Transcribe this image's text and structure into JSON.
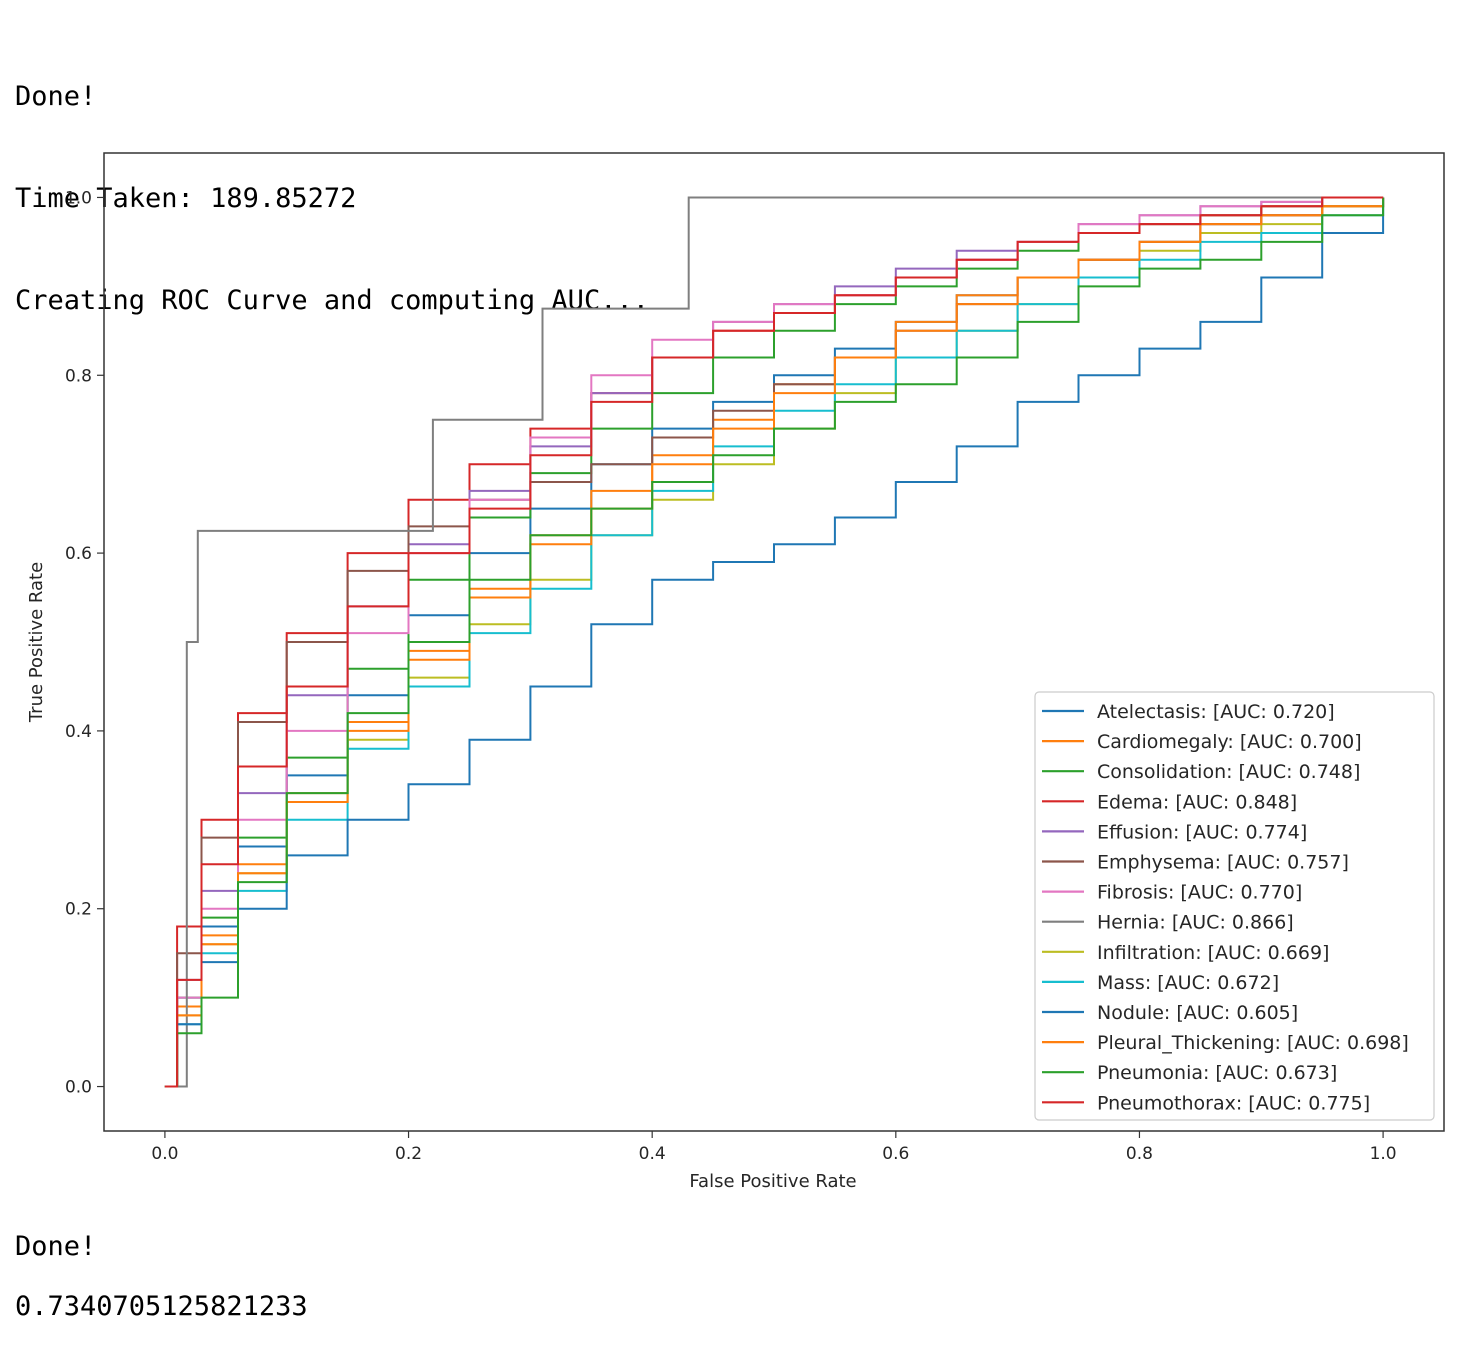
{
  "output": {
    "lines_top": [
      "Done!",
      "Time Taken: 189.85272",
      "Creating ROC Curve and computing AUC..."
    ],
    "done": "Done!",
    "value": "0.7340705125821233"
  },
  "chart_data": {
    "type": "line",
    "title": "",
    "xlabel": "False Positive Rate",
    "ylabel": "True Positive Rate",
    "xlim": [
      -0.05,
      1.05
    ],
    "ylim": [
      -0.05,
      1.05
    ],
    "xticks": [
      "0.0",
      "0.2",
      "0.4",
      "0.6",
      "0.8",
      "1.0"
    ],
    "yticks": [
      "0.0",
      "0.2",
      "0.4",
      "0.6",
      "0.8",
      "1.0"
    ],
    "legend_position": "lower-right",
    "grid": false,
    "series": [
      {
        "name": "Atelectasis: [AUC: 0.720]",
        "color": "#1f77b4",
        "x": [
          0,
          0.01,
          0.03,
          0.06,
          0.1,
          0.15,
          0.2,
          0.25,
          0.3,
          0.35,
          0.4,
          0.45,
          0.5,
          0.55,
          0.6,
          0.65,
          0.7,
          0.75,
          0.8,
          0.85,
          0.9,
          0.95,
          1.0
        ],
        "y": [
          0,
          0.1,
          0.18,
          0.27,
          0.35,
          0.44,
          0.53,
          0.6,
          0.65,
          0.7,
          0.74,
          0.77,
          0.8,
          0.83,
          0.86,
          0.89,
          0.91,
          0.93,
          0.95,
          0.97,
          0.98,
          0.99,
          1.0
        ]
      },
      {
        "name": "Cardiomegaly: [AUC: 0.700]",
        "color": "#ff7f0e",
        "x": [
          0,
          0.01,
          0.03,
          0.06,
          0.1,
          0.15,
          0.2,
          0.25,
          0.3,
          0.35,
          0.4,
          0.45,
          0.5,
          0.55,
          0.6,
          0.65,
          0.7,
          0.75,
          0.8,
          0.85,
          0.9,
          0.95,
          1.0
        ],
        "y": [
          0,
          0.09,
          0.17,
          0.25,
          0.33,
          0.41,
          0.49,
          0.56,
          0.62,
          0.67,
          0.71,
          0.75,
          0.79,
          0.82,
          0.86,
          0.89,
          0.91,
          0.93,
          0.95,
          0.97,
          0.98,
          0.99,
          1.0
        ]
      },
      {
        "name": "Consolidation: [AUC: 0.748]",
        "color": "#2ca02c",
        "x": [
          0,
          0.01,
          0.03,
          0.06,
          0.1,
          0.15,
          0.2,
          0.25,
          0.3,
          0.35,
          0.4,
          0.45,
          0.5,
          0.55,
          0.6,
          0.65,
          0.7,
          0.75,
          0.8,
          0.85,
          0.9,
          0.95,
          1.0
        ],
        "y": [
          0,
          0.1,
          0.19,
          0.28,
          0.37,
          0.47,
          0.57,
          0.64,
          0.69,
          0.74,
          0.78,
          0.82,
          0.85,
          0.88,
          0.9,
          0.92,
          0.94,
          0.96,
          0.97,
          0.98,
          0.99,
          1.0,
          1.0
        ]
      },
      {
        "name": "Edema: [AUC: 0.848]",
        "color": "#d62728",
        "x": [
          0,
          0.01,
          0.03,
          0.06,
          0.1,
          0.15,
          0.2,
          0.25,
          0.3,
          0.35,
          0.4,
          0.45,
          0.5,
          0.55,
          0.6,
          0.65,
          0.7,
          0.75,
          0.8,
          0.85,
          0.9,
          0.95,
          1.0
        ],
        "y": [
          0,
          0.18,
          0.3,
          0.42,
          0.51,
          0.6,
          0.66,
          0.7,
          0.74,
          0.78,
          0.82,
          0.85,
          0.87,
          0.89,
          0.91,
          0.93,
          0.95,
          0.96,
          0.97,
          0.98,
          0.99,
          1.0,
          1.0
        ]
      },
      {
        "name": "Effusion: [AUC: 0.774]",
        "color": "#9467bd",
        "x": [
          0,
          0.01,
          0.03,
          0.06,
          0.1,
          0.15,
          0.2,
          0.25,
          0.3,
          0.35,
          0.4,
          0.45,
          0.5,
          0.55,
          0.6,
          0.65,
          0.7,
          0.75,
          0.8,
          0.85,
          0.9,
          0.95,
          1.0
        ],
        "y": [
          0,
          0.12,
          0.22,
          0.33,
          0.44,
          0.54,
          0.61,
          0.67,
          0.72,
          0.78,
          0.82,
          0.86,
          0.88,
          0.9,
          0.92,
          0.94,
          0.95,
          0.97,
          0.98,
          0.99,
          0.995,
          1.0,
          1.0
        ]
      },
      {
        "name": "Emphysema: [AUC: 0.757]",
        "color": "#8c564b",
        "x": [
          0,
          0.01,
          0.03,
          0.06,
          0.1,
          0.15,
          0.2,
          0.25,
          0.3,
          0.35,
          0.4,
          0.45,
          0.5,
          0.55,
          0.6,
          0.65,
          0.7,
          0.75,
          0.8,
          0.85,
          0.9,
          0.95,
          1.0
        ],
        "y": [
          0,
          0.15,
          0.28,
          0.41,
          0.5,
          0.58,
          0.63,
          0.66,
          0.68,
          0.7,
          0.73,
          0.76,
          0.79,
          0.82,
          0.85,
          0.88,
          0.91,
          0.93,
          0.95,
          0.97,
          0.98,
          0.99,
          1.0
        ]
      },
      {
        "name": "Fibrosis: [AUC: 0.770]",
        "color": "#e377c2",
        "x": [
          0,
          0.01,
          0.03,
          0.06,
          0.1,
          0.15,
          0.2,
          0.25,
          0.3,
          0.35,
          0.4,
          0.45,
          0.5,
          0.55,
          0.6,
          0.65,
          0.7,
          0.75,
          0.8,
          0.85,
          0.9,
          0.95,
          1.0
        ],
        "y": [
          0,
          0.1,
          0.2,
          0.3,
          0.4,
          0.51,
          0.6,
          0.66,
          0.73,
          0.8,
          0.84,
          0.86,
          0.88,
          0.89,
          0.91,
          0.93,
          0.95,
          0.97,
          0.98,
          0.99,
          0.995,
          1.0,
          1.0
        ]
      },
      {
        "name": "Hernia: [AUC: 0.866]",
        "color": "#7f7f7f",
        "step": true,
        "x": [
          0,
          0.018,
          0.018,
          0.022,
          0.022,
          0.027,
          0.027,
          0.22,
          0.22,
          0.31,
          0.31,
          0.43,
          0.43,
          1.0
        ],
        "y": [
          0,
          0,
          0.5,
          0.5,
          0.5,
          0.5,
          0.625,
          0.625,
          0.75,
          0.75,
          0.875,
          0.875,
          1.0,
          1.0
        ]
      },
      {
        "name": "Infiltration: [AUC: 0.669]",
        "color": "#bcbd22",
        "x": [
          0,
          0.01,
          0.03,
          0.06,
          0.1,
          0.15,
          0.2,
          0.25,
          0.3,
          0.35,
          0.4,
          0.45,
          0.5,
          0.55,
          0.6,
          0.65,
          0.7,
          0.75,
          0.8,
          0.85,
          0.9,
          0.95,
          1.0
        ],
        "y": [
          0,
          0.08,
          0.16,
          0.24,
          0.32,
          0.39,
          0.46,
          0.52,
          0.57,
          0.62,
          0.66,
          0.7,
          0.74,
          0.78,
          0.82,
          0.85,
          0.88,
          0.91,
          0.94,
          0.96,
          0.97,
          0.99,
          1.0
        ]
      },
      {
        "name": "Mass: [AUC: 0.672]",
        "color": "#17becf",
        "x": [
          0,
          0.01,
          0.03,
          0.06,
          0.1,
          0.15,
          0.2,
          0.25,
          0.3,
          0.35,
          0.4,
          0.45,
          0.5,
          0.55,
          0.6,
          0.65,
          0.7,
          0.75,
          0.8,
          0.85,
          0.9,
          0.95,
          1.0
        ],
        "y": [
          0,
          0.07,
          0.15,
          0.22,
          0.3,
          0.38,
          0.45,
          0.51,
          0.56,
          0.62,
          0.67,
          0.72,
          0.76,
          0.79,
          0.82,
          0.85,
          0.88,
          0.91,
          0.93,
          0.95,
          0.96,
          0.98,
          1.0
        ]
      },
      {
        "name": "Nodule: [AUC: 0.605]",
        "color": "#1f77b4",
        "x": [
          0,
          0.01,
          0.03,
          0.06,
          0.1,
          0.15,
          0.2,
          0.25,
          0.3,
          0.35,
          0.4,
          0.45,
          0.5,
          0.55,
          0.6,
          0.65,
          0.7,
          0.75,
          0.8,
          0.85,
          0.9,
          0.95,
          1.0
        ],
        "y": [
          0,
          0.07,
          0.14,
          0.2,
          0.26,
          0.3,
          0.34,
          0.39,
          0.45,
          0.52,
          0.57,
          0.59,
          0.61,
          0.64,
          0.68,
          0.72,
          0.77,
          0.8,
          0.83,
          0.86,
          0.91,
          0.96,
          1.0
        ]
      },
      {
        "name": "Pleural_Thickening: [AUC: 0.698]",
        "color": "#ff7f0e",
        "x": [
          0,
          0.01,
          0.03,
          0.06,
          0.1,
          0.15,
          0.2,
          0.25,
          0.3,
          0.35,
          0.4,
          0.45,
          0.5,
          0.55,
          0.6,
          0.65,
          0.7,
          0.75,
          0.8,
          0.85,
          0.9,
          0.95,
          1.0
        ],
        "y": [
          0,
          0.08,
          0.16,
          0.24,
          0.32,
          0.4,
          0.48,
          0.55,
          0.61,
          0.65,
          0.7,
          0.74,
          0.78,
          0.82,
          0.85,
          0.88,
          0.91,
          0.93,
          0.95,
          0.97,
          0.98,
          0.99,
          1.0
        ]
      },
      {
        "name": "Pneumonia: [AUC: 0.673]",
        "color": "#2ca02c",
        "x": [
          0,
          0.01,
          0.03,
          0.06,
          0.1,
          0.15,
          0.2,
          0.25,
          0.3,
          0.35,
          0.4,
          0.45,
          0.5,
          0.55,
          0.6,
          0.65,
          0.7,
          0.75,
          0.8,
          0.85,
          0.9,
          0.95,
          1.0
        ],
        "y": [
          0,
          0.06,
          0.1,
          0.23,
          0.33,
          0.42,
          0.5,
          0.57,
          0.62,
          0.65,
          0.68,
          0.71,
          0.74,
          0.77,
          0.79,
          0.82,
          0.86,
          0.9,
          0.92,
          0.93,
          0.95,
          0.98,
          1.0
        ]
      },
      {
        "name": "Pneumothorax: [AUC: 0.775]",
        "color": "#d62728",
        "x": [
          0,
          0.01,
          0.03,
          0.06,
          0.1,
          0.15,
          0.2,
          0.25,
          0.3,
          0.35,
          0.4,
          0.45,
          0.5,
          0.55,
          0.6,
          0.65,
          0.7,
          0.75,
          0.8,
          0.85,
          0.9,
          0.95,
          1.0
        ],
        "y": [
          0,
          0.12,
          0.25,
          0.36,
          0.45,
          0.54,
          0.6,
          0.65,
          0.71,
          0.77,
          0.82,
          0.85,
          0.87,
          0.89,
          0.91,
          0.93,
          0.95,
          0.96,
          0.97,
          0.98,
          0.99,
          1.0,
          1.0
        ]
      }
    ]
  }
}
